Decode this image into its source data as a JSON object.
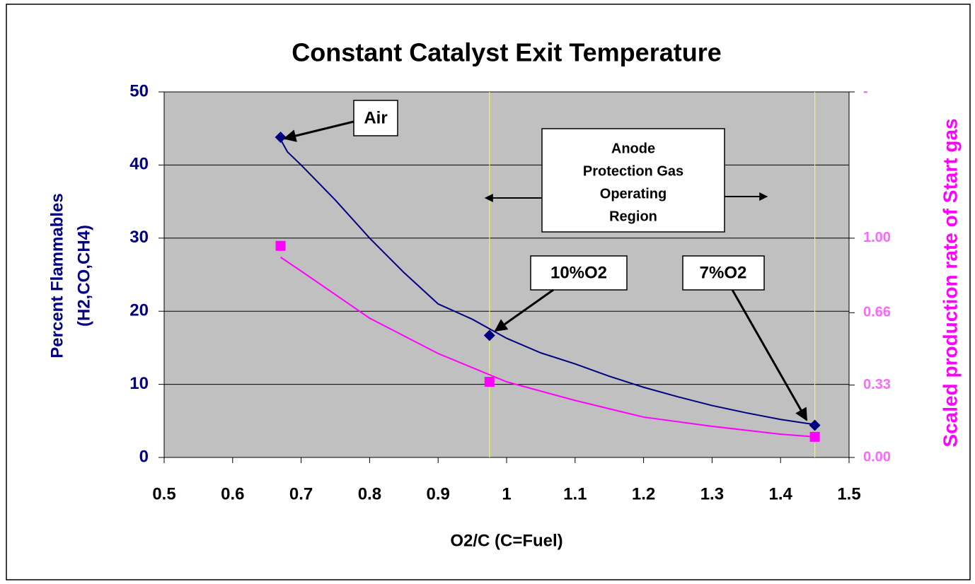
{
  "chart_data": {
    "type": "line",
    "title": "Constant Catalyst Exit Temperature",
    "xlabel": "O2/C (C=Fuel)",
    "ylabel": [
      "Percent Flammables",
      "(H2,CO,CH4)"
    ],
    "y2label": "Scaled production rate of Start gas",
    "xlim": [
      0.5,
      1.5
    ],
    "xticks": [
      0.5,
      0.6,
      0.7,
      0.8,
      0.9,
      1,
      1.1,
      1.2,
      1.3,
      1.4,
      1.5
    ],
    "ylim": [
      0,
      50
    ],
    "yticks": [
      0,
      10,
      20,
      30,
      40,
      50
    ],
    "y2lim": [
      0,
      1.667
    ],
    "y2ticks": [
      {
        "value": 0,
        "label": "0.00"
      },
      {
        "value": 0.33,
        "label": "0.33"
      },
      {
        "value": 0.66,
        "label": "0.66"
      },
      {
        "value": 1,
        "label": "1.00"
      },
      {
        "value": 1.667,
        "label": "-"
      }
    ],
    "grid": true,
    "vlines": [
      0.975,
      1.45
    ],
    "series": [
      {
        "style": "line",
        "color": "#000080",
        "x": [
          0.67,
          0.68,
          0.7,
          0.75,
          0.8,
          0.85,
          0.9,
          0.95,
          1.0,
          1.05,
          1.1,
          1.15,
          1.2,
          1.25,
          1.3,
          1.35,
          1.4,
          1.45
        ],
        "values": [
          43.5,
          41.8,
          40,
          35.2,
          30,
          25.3,
          21,
          18.9,
          16.3,
          14.3,
          12.8,
          11.1,
          9.6,
          8.3,
          7.1,
          6.1,
          5.2,
          4.5
        ]
      },
      {
        "style": "markers",
        "marker": "diamond",
        "color": "#000080",
        "x": [
          0.67,
          0.975,
          1.45
        ],
        "values": [
          43.8,
          16.7,
          4.4
        ]
      },
      {
        "style": "line",
        "axis": "y2",
        "color": "#ff00ff",
        "x": [
          0.67,
          0.7,
          0.8,
          0.9,
          1.0,
          1.1,
          1.2,
          1.3,
          1.4,
          1.45
        ],
        "values": [
          0.913,
          0.85,
          0.635,
          0.474,
          0.345,
          0.26,
          0.184,
          0.142,
          0.106,
          0.094
        ]
      },
      {
        "style": "markers",
        "marker": "square",
        "axis": "y2",
        "color": "#ff00ff",
        "x": [
          0.67,
          0.975,
          1.45
        ],
        "values": [
          0.965,
          0.345,
          0.094
        ]
      }
    ],
    "annotations": [
      "Air",
      "10%O2",
      "7%O2"
    ],
    "region_note": [
      "Anode",
      "Protection Gas",
      "Operating",
      "Region"
    ]
  }
}
